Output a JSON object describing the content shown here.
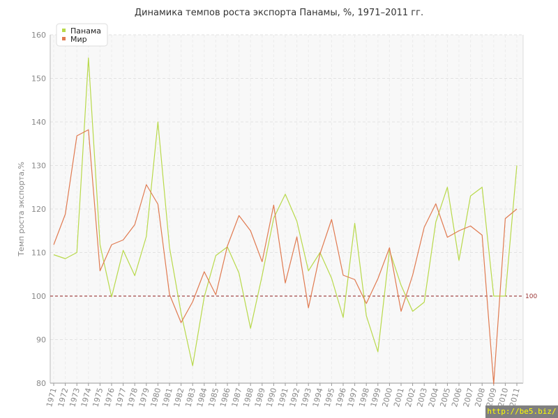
{
  "chart_data": {
    "type": "line",
    "title": "Динамика темпов роста экспорта Панамы, %, 1971–2011 гг.",
    "xlabel": "",
    "ylabel": "Темп роста экспорта,%",
    "ylim": [
      80,
      160
    ],
    "yticks": [
      80,
      90,
      100,
      110,
      120,
      130,
      140,
      150,
      160
    ],
    "grid": true,
    "legend_position": "top-left",
    "reference_line": {
      "value": 100,
      "label": "100",
      "color": "#8b1a1a"
    },
    "x": [
      "1971",
      "1972",
      "1973",
      "1974",
      "1975",
      "1976",
      "1977",
      "1978",
      "1979",
      "1980",
      "1981",
      "1982",
      "1983",
      "1984",
      "1985",
      "1986",
      "1987",
      "1988",
      "1989",
      "1990",
      "1991",
      "1992",
      "1993",
      "1994",
      "1995",
      "1996",
      "1997",
      "1998",
      "1999",
      "2000",
      "2001",
      "2002",
      "2003",
      "2004",
      "2005",
      "2006",
      "2007",
      "2008",
      "2009",
      "2010",
      "2011"
    ],
    "series": [
      {
        "name": "Панама",
        "color": "#b8d94a",
        "values": [
          109.5,
          108.6,
          110.0,
          154.7,
          111.8,
          99.8,
          110.5,
          104.7,
          113.7,
          140.0,
          111.2,
          96.1,
          84.0,
          99.8,
          109.3,
          111.3,
          105.3,
          92.6,
          104.7,
          117.9,
          123.4,
          117.2,
          105.8,
          110.0,
          104.1,
          95.1,
          116.7,
          95.5,
          87.2,
          110.5,
          102.5,
          96.5,
          98.6,
          117.0,
          125.0,
          108.2,
          123.0,
          125.0,
          100.0,
          100.0,
          130.0
        ]
      },
      {
        "name": "Мир",
        "color": "#e07a50",
        "values": [
          111.8,
          118.8,
          136.8,
          138.2,
          105.8,
          111.8,
          112.9,
          116.4,
          125.6,
          121.1,
          100.4,
          93.9,
          98.7,
          105.6,
          100.3,
          111.5,
          118.5,
          115.0,
          107.9,
          120.9,
          103.0,
          113.6,
          97.3,
          109.7,
          117.6,
          104.8,
          103.8,
          98.3,
          104.0,
          111.1,
          96.5,
          104.8,
          115.8,
          121.2,
          113.5,
          115.0,
          116.1,
          114.0,
          79.8,
          117.8,
          120.0
        ]
      }
    ]
  },
  "watermark": "http://be5.biz/"
}
